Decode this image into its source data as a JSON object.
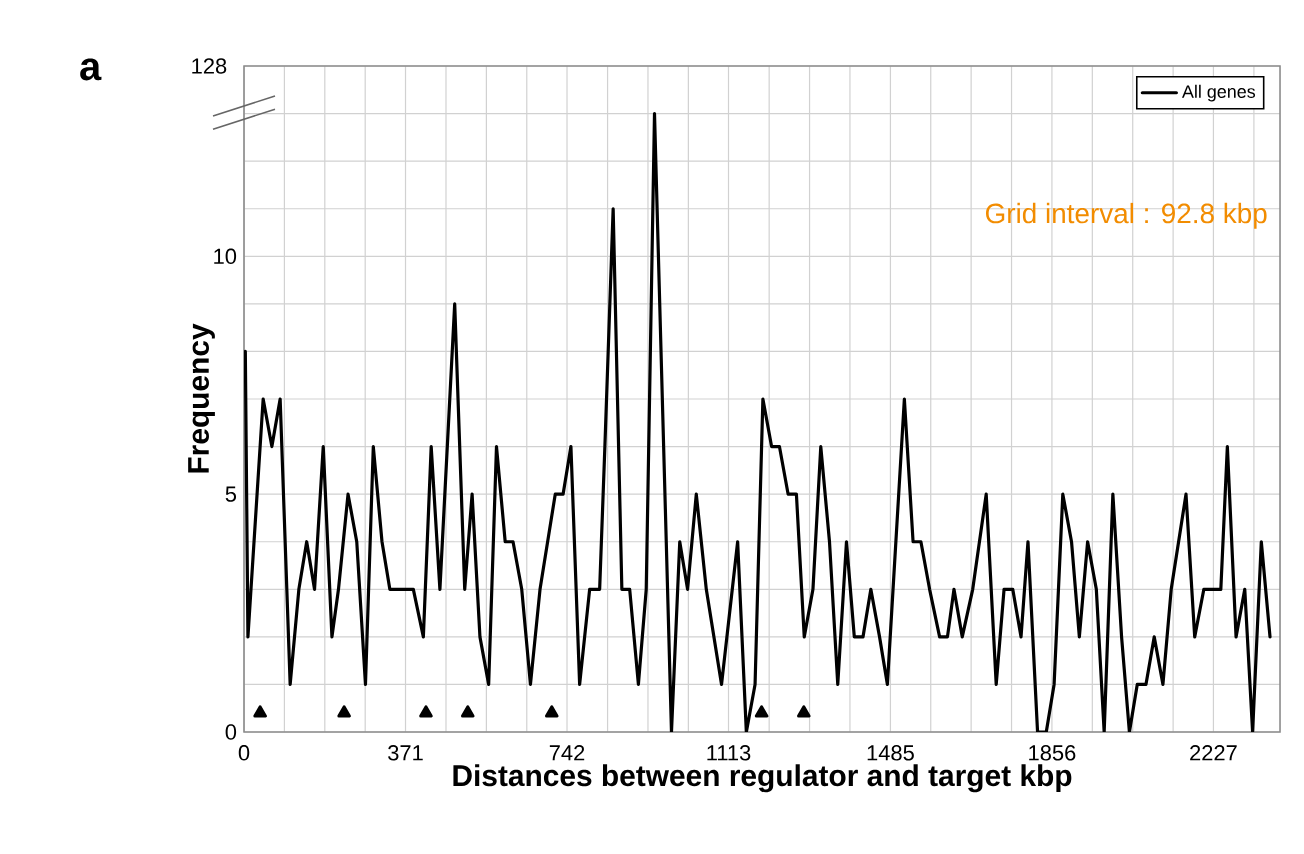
{
  "chart_data": {
    "type": "line",
    "title": "a",
    "xlabel": "Distances between regulator and target  kbp",
    "ylabel": "Frequency",
    "annotations": [
      "Grid interval : 92.8 kbp",
      "128"
    ],
    "xlim": [
      0,
      2380
    ],
    "ylim": [
      0,
      14
    ],
    "xticks": [
      {
        "value": 0,
        "label": "0"
      },
      {
        "value": 92.8,
        "label": null
      },
      {
        "value": 185.6,
        "label": null
      },
      {
        "value": 278.4,
        "label": null
      },
      {
        "value": 371,
        "label": "371"
      },
      {
        "value": 464,
        "label": null
      },
      {
        "value": 556.8,
        "label": null
      },
      {
        "value": 649.6,
        "label": null
      },
      {
        "value": 742,
        "label": "742"
      },
      {
        "value": 835.2,
        "label": null
      },
      {
        "value": 928,
        "label": null
      },
      {
        "value": 1020.8,
        "label": null
      },
      {
        "value": 1113,
        "label": "1113"
      },
      {
        "value": 1206.4,
        "label": null
      },
      {
        "value": 1299.2,
        "label": null
      },
      {
        "value": 1392,
        "label": null
      },
      {
        "value": 1485,
        "label": "1485"
      },
      {
        "value": 1577.6,
        "label": null
      },
      {
        "value": 1670.4,
        "label": null
      },
      {
        "value": 1763.2,
        "label": null
      },
      {
        "value": 1856,
        "label": "1856"
      },
      {
        "value": 1948.8,
        "label": null
      },
      {
        "value": 2041.6,
        "label": null
      },
      {
        "value": 2134.4,
        "label": null
      },
      {
        "value": 2227,
        "label": "2227"
      },
      {
        "value": 2320,
        "label": null
      }
    ],
    "yticks": [
      0,
      {
        "value": 1,
        "label": null
      },
      {
        "value": 2,
        "label": null
      },
      {
        "value": 3,
        "label": null
      },
      {
        "value": 4,
        "label": null
      },
      5,
      {
        "value": 6,
        "label": null
      },
      {
        "value": 7,
        "label": null
      },
      {
        "value": 8,
        "label": null
      },
      {
        "value": 9,
        "label": null
      },
      10,
      {
        "value": 11,
        "label": null
      },
      {
        "value": 12,
        "label": null
      },
      {
        "value": 13,
        "label": null
      },
      {
        "value": 14,
        "label": null
      }
    ],
    "grid": true,
    "legend": "top right",
    "line_style": "solid",
    "series": [
      {
        "name": "All genes",
        "color": "#000000",
        "marker": "none",
        "x": [
          3,
          9,
          44,
          64,
          83,
          106,
          126,
          144,
          162,
          182,
          202,
          217,
          239,
          259,
          279,
          297,
          317,
          335,
          389,
          412,
          430,
          450,
          484,
          507,
          524,
          542,
          562,
          580,
          600,
          618,
          638,
          658,
          680,
          715,
          733,
          751,
          771,
          794,
          817,
          829,
          848,
          868,
          886,
          906,
          924,
          943,
          982,
          1001,
          1019,
          1039,
          1062,
          1097,
          1134,
          1154,
          1174,
          1192,
          1212,
          1230,
          1250,
          1269,
          1287,
          1307,
          1325,
          1345,
          1364,
          1384,
          1402,
          1422,
          1440,
          1460,
          1478,
          1517,
          1537,
          1555,
          1575,
          1598,
          1616,
          1631,
          1650,
          1674,
          1705,
          1728,
          1746,
          1766,
          1785,
          1801,
          1823,
          1843,
          1861,
          1881,
          1901,
          1919,
          1938,
          1958,
          1976,
          1996,
          2016,
          2034,
          2052,
          2072,
          2091,
          2111,
          2130,
          2164,
          2184,
          2205,
          2225,
          2244,
          2259,
          2279,
          2299,
          2317,
          2337,
          2357
        ],
        "values": [
          8,
          2,
          7,
          6,
          7,
          1,
          3,
          4,
          3,
          6,
          2,
          3,
          5,
          4,
          1,
          6,
          4,
          3,
          3,
          2,
          6,
          3,
          9,
          3,
          5,
          2,
          1,
          6,
          4,
          4,
          3,
          1,
          3,
          5,
          5,
          6,
          1,
          3,
          3,
          6,
          11,
          3,
          3,
          1,
          3,
          13,
          0,
          4,
          3,
          5,
          3,
          1,
          4,
          0,
          1,
          7,
          6,
          6,
          5,
          5,
          2,
          3,
          6,
          4,
          1,
          4,
          2,
          2,
          3,
          2,
          1,
          7,
          4,
          4,
          3,
          2,
          2,
          3,
          2,
          3,
          5,
          1,
          3,
          3,
          2,
          4,
          0,
          0,
          1,
          5,
          4,
          2,
          4,
          3,
          0,
          5,
          2,
          0,
          1,
          1,
          2,
          1,
          3,
          5,
          2,
          3,
          3,
          3,
          6,
          2,
          3,
          0,
          4,
          2
        ]
      },
      {
        "color": "#000000",
        "type": "scatter",
        "marker": "triangle",
        "x": [
          37,
          230,
          418,
          514,
          707,
          1189,
          1286
        ],
        "values": [
          0.4,
          0.4,
          0.4,
          0.4,
          0.4,
          0.4,
          0.4
        ]
      }
    ]
  }
}
